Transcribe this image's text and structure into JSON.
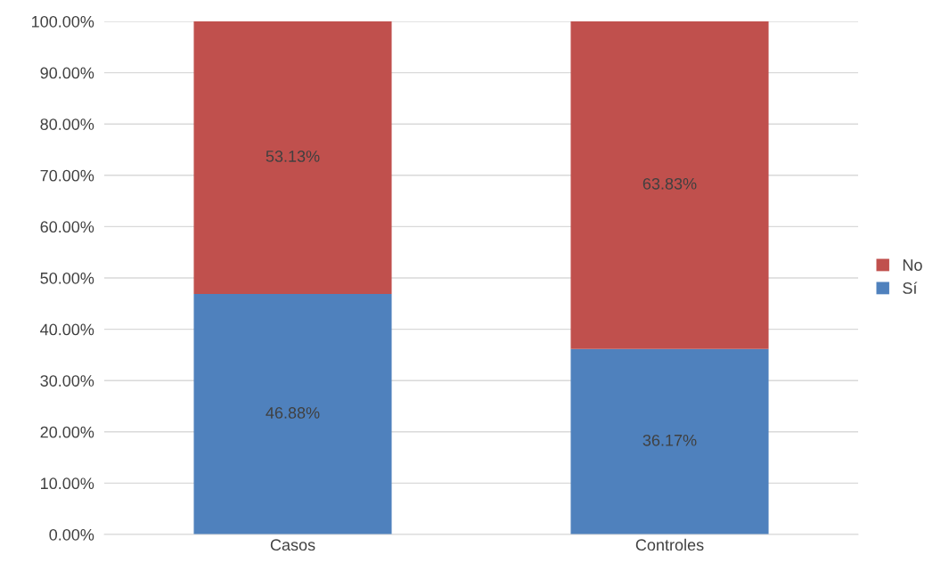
{
  "chart_data": {
    "type": "bar",
    "stacked": true,
    "categories": [
      "Casos",
      "Controles"
    ],
    "series": [
      {
        "name": "Sí",
        "color": "#4f81bd",
        "values": [
          46.88,
          36.17
        ],
        "value_labels": [
          "46.88%",
          "36.17%"
        ]
      },
      {
        "name": "No",
        "color": "#c0504d",
        "values": [
          53.13,
          63.83
        ],
        "value_labels": [
          "53.13%",
          "63.83%"
        ]
      }
    ],
    "ylim": [
      0,
      100
    ],
    "yticks": [
      {
        "value": 0,
        "label": "0.00%"
      },
      {
        "value": 10,
        "label": "10.00%"
      },
      {
        "value": 20,
        "label": "20.00%"
      },
      {
        "value": 30,
        "label": "30.00%"
      },
      {
        "value": 40,
        "label": "40.00%"
      },
      {
        "value": 50,
        "label": "50.00%"
      },
      {
        "value": 60,
        "label": "60.00%"
      },
      {
        "value": 70,
        "label": "70.00%"
      },
      {
        "value": 80,
        "label": "80.00%"
      },
      {
        "value": 90,
        "label": "90.00%"
      },
      {
        "value": 100,
        "label": "100.00%"
      }
    ],
    "grid": "y",
    "legend": "right"
  }
}
